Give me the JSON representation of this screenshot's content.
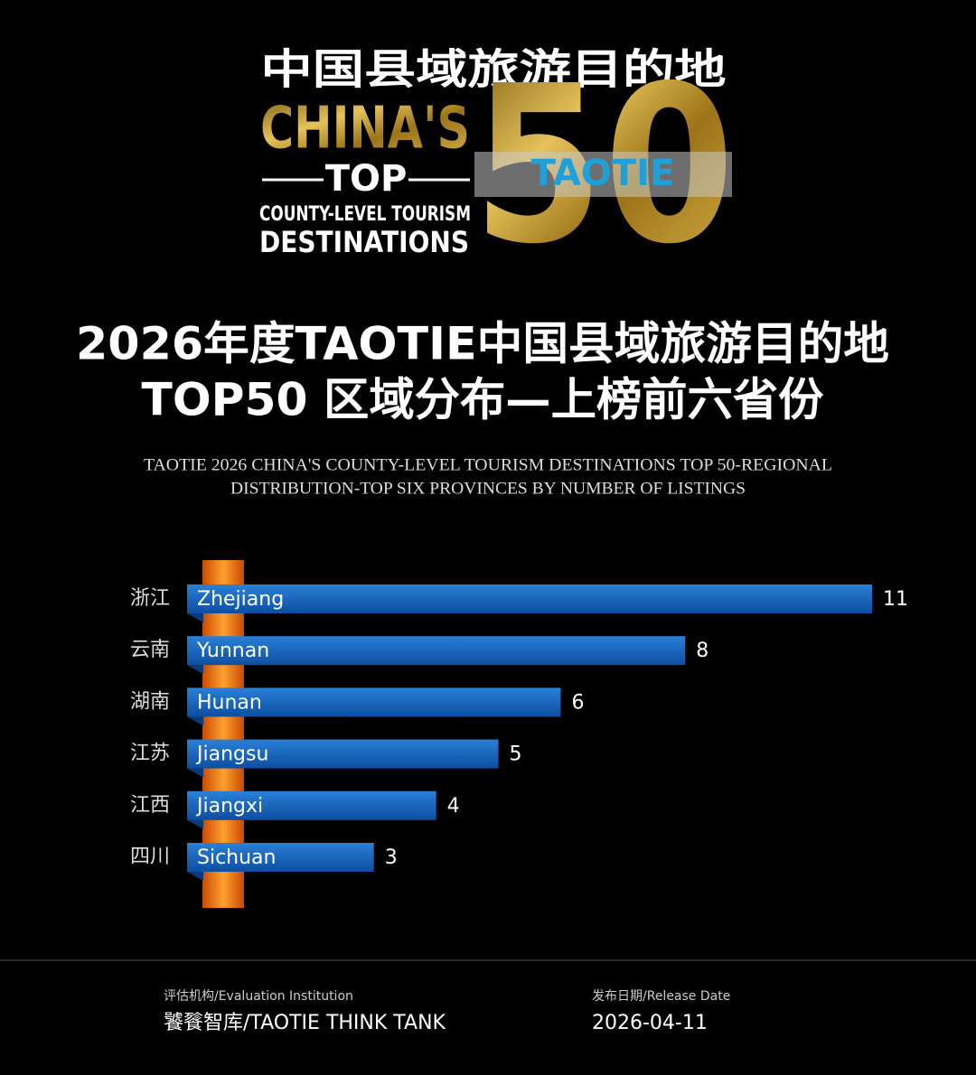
{
  "logo": {
    "cn_title": "中国县域旅游目的地",
    "line1": "CHINA'S",
    "line2": "TOP",
    "line3": "COUNTY-LEVEL TOURISM",
    "line4": "DESTINATIONS",
    "number": "50",
    "brand": "TAOTIE"
  },
  "title": {
    "line1": "2026年度TAOTIE中国县域旅游目的地",
    "line2": "TOP50 区域分布—上榜前六省份"
  },
  "subtitle": {
    "line1": "TAOTIE 2026 CHINA'S COUNTY-LEVEL TOURISM DESTINATIONS TOP 50-REGIONAL",
    "line2": "DISTRIBUTION-TOP SIX PROVINCES BY NUMBER OF LISTINGS"
  },
  "chart_data": {
    "type": "bar",
    "orientation": "horizontal",
    "color": "#1565c0",
    "categories": [
      "浙江",
      "云南",
      "湖南",
      "江苏",
      "江西",
      "四川"
    ],
    "bar_labels": [
      "Zhejiang",
      "Yunnan",
      "Hunan",
      "Jiangsu",
      "Jiangxi",
      "Sichuan"
    ],
    "values": [
      11,
      8,
      6,
      5,
      4,
      3
    ]
  },
  "footer": {
    "institution_label": "评估机构/Evaluation Institution",
    "institution": "饕餮智库/TAOTIE THINK TANK",
    "date_label": "发布日期/Release Date",
    "date": "2026-04-11"
  }
}
